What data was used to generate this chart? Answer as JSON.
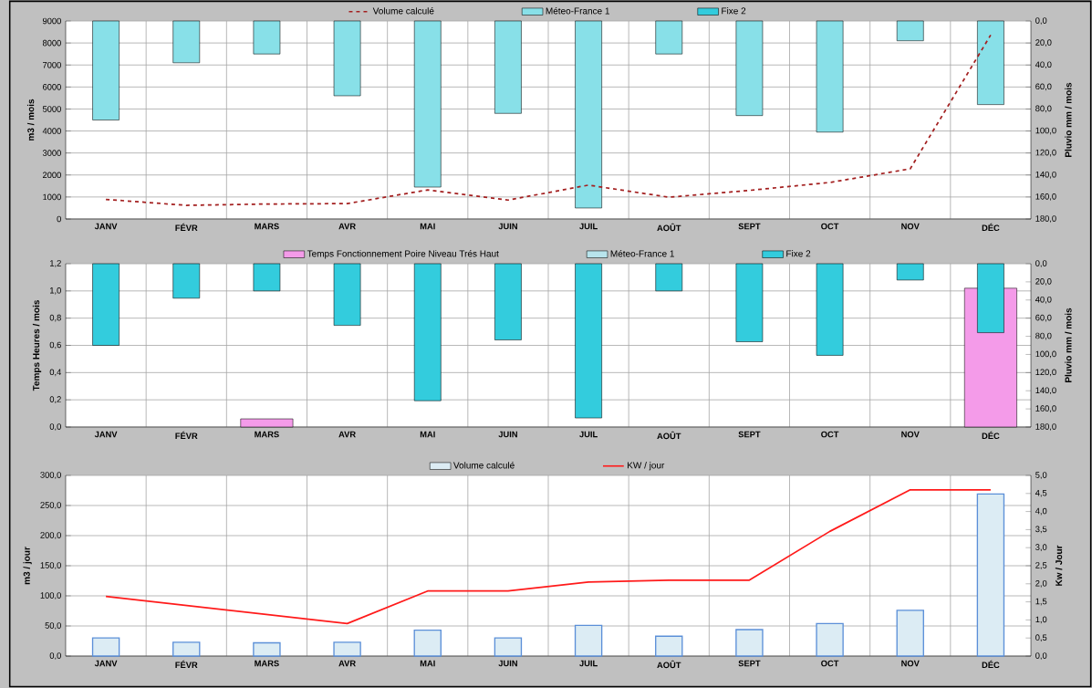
{
  "chart_data": [
    {
      "type": "bar",
      "categories": [
        "JANV",
        "FÉVR",
        "MARS",
        "AVR",
        "MAI",
        "JUIN",
        "JUIL",
        "AOÛT",
        "SEPT",
        "OCT",
        "NOV",
        "DÉC"
      ],
      "series": [
        {
          "name": "Volume calculé",
          "type": "line",
          "line_style": "dashed",
          "color": "#a31f1f",
          "values": [
            890,
            620,
            680,
            700,
            1320,
            860,
            1540,
            990,
            1300,
            1660,
            2280,
            8360
          ]
        },
        {
          "name": "Méteo-France 1",
          "axis": "y2",
          "color": "#88e0e8",
          "values": [
            90,
            38,
            30,
            68,
            151,
            84,
            170,
            30,
            86,
            101,
            18,
            76
          ]
        },
        {
          "name": "Fixe 2",
          "axis": "y2",
          "color": "#33ccdd",
          "values": [
            null,
            null,
            null,
            null,
            null,
            null,
            null,
            null,
            null,
            null,
            null,
            null
          ]
        }
      ],
      "ylabel": "m3 / mois",
      "y2label": "Pluvio  mm / mois",
      "ylim": [
        0,
        9000
      ],
      "yticks": [
        0,
        1000,
        2000,
        3000,
        4000,
        5000,
        6000,
        7000,
        8000,
        9000
      ],
      "y2lim": [
        180,
        0
      ],
      "y2ticks": [
        {
          "value": 0,
          "label": "0,0"
        },
        {
          "value": 20,
          "label": "20,0"
        },
        {
          "value": 40,
          "label": "40,0"
        },
        {
          "value": 60,
          "label": "60,0"
        },
        {
          "value": 80,
          "label": "80,0"
        },
        {
          "value": 100,
          "label": "100,0"
        },
        {
          "value": 120,
          "label": "120,0"
        },
        {
          "value": 140,
          "label": "140,0"
        },
        {
          "value": 160,
          "label": "160,0"
        },
        {
          "value": 180,
          "label": "180,0"
        }
      ],
      "grid": true,
      "legend": "top"
    },
    {
      "type": "bar",
      "categories": [
        "JANV",
        "FÉVR",
        "MARS",
        "AVR",
        "MAI",
        "JUIN",
        "JUIL",
        "AOÛT",
        "SEPT",
        "OCT",
        "NOV",
        "DÉC"
      ],
      "series": [
        {
          "name": "Temps Fonctionnement Poire Niveau Trés Haut",
          "color": "#f49be9",
          "values": [
            null,
            null,
            0.06,
            null,
            null,
            null,
            null,
            null,
            null,
            null,
            null,
            1.02
          ]
        },
        {
          "name": "Méteo-France 1",
          "axis": "y2",
          "color": "#b8e4ec",
          "values": [
            null,
            null,
            null,
            null,
            null,
            null,
            null,
            null,
            null,
            null,
            null,
            null
          ]
        },
        {
          "name": "Fixe 2",
          "axis": "y2",
          "color": "#33ccdd",
          "values": [
            90,
            38,
            30,
            68,
            151,
            84,
            170,
            30,
            86,
            101,
            18,
            76
          ]
        }
      ],
      "ylabel": "Temps  Heures / mois",
      "y2label": "Pluvio  mm / mois",
      "ylim": [
        0,
        1.2
      ],
      "yticks": [
        {
          "value": 0,
          "label": "0,0"
        },
        {
          "value": 0.2,
          "label": "0,2"
        },
        {
          "value": 0.4,
          "label": "0,4"
        },
        {
          "value": 0.6,
          "label": "0,6"
        },
        {
          "value": 0.8,
          "label": "0,8"
        },
        {
          "value": 1.0,
          "label": "1,0"
        },
        {
          "value": 1.2,
          "label": "1,2"
        }
      ],
      "y2lim": [
        180,
        0
      ],
      "y2ticks": [
        {
          "value": 0,
          "label": "0,0"
        },
        {
          "value": 20,
          "label": "20,0"
        },
        {
          "value": 40,
          "label": "40,0"
        },
        {
          "value": 60,
          "label": "60,0"
        },
        {
          "value": 80,
          "label": "80,0"
        },
        {
          "value": 100,
          "label": "100,0"
        },
        {
          "value": 120,
          "label": "120,0"
        },
        {
          "value": 140,
          "label": "140,0"
        },
        {
          "value": 160,
          "label": "160,0"
        },
        {
          "value": 180,
          "label": "180,0"
        }
      ],
      "grid": true,
      "legend": "top"
    },
    {
      "type": "bar",
      "categories": [
        "JANV",
        "FÉVR",
        "MARS",
        "AVR",
        "MAI",
        "JUIN",
        "JUIL",
        "AOÛT",
        "SEPT",
        "OCT",
        "NOV",
        "DÉC"
      ],
      "series": [
        {
          "name": "Volume calculé",
          "color": "#dcecf4",
          "values": [
            30,
            23,
            22,
            23,
            43,
            30,
            51,
            33,
            44,
            54,
            76,
            269
          ]
        },
        {
          "name": "KW / jour",
          "type": "line",
          "axis": "y2",
          "color": "#ff1a1a",
          "values": [
            1.65,
            1.4,
            1.15,
            0.9,
            1.8,
            1.8,
            2.05,
            2.1,
            2.1,
            3.45,
            4.6,
            4.6
          ]
        }
      ],
      "ylabel": "m3 / jour",
      "y2label": "Kw / Jour",
      "ylim": [
        0,
        300
      ],
      "yticks": [
        {
          "value": 0,
          "label": "0,0"
        },
        {
          "value": 50,
          "label": "50,0"
        },
        {
          "value": 100,
          "label": "100,0"
        },
        {
          "value": 150,
          "label": "150,0"
        },
        {
          "value": 200,
          "label": "200,0"
        },
        {
          "value": 250,
          "label": "250,0"
        },
        {
          "value": 300,
          "label": "300,0"
        }
      ],
      "y2lim": [
        0,
        5
      ],
      "y2ticks": [
        {
          "value": 0,
          "label": "0,0"
        },
        {
          "value": 0.5,
          "label": "0,5"
        },
        {
          "value": 1,
          "label": "1,0"
        },
        {
          "value": 1.5,
          "label": "1,5"
        },
        {
          "value": 2,
          "label": "2,0"
        },
        {
          "value": 2.5,
          "label": "2,5"
        },
        {
          "value": 3,
          "label": "3,0"
        },
        {
          "value": 3.5,
          "label": "3,5"
        },
        {
          "value": 4,
          "label": "4,0"
        },
        {
          "value": 4.5,
          "label": "4,5"
        },
        {
          "value": 5,
          "label": "5,0"
        }
      ],
      "grid": true,
      "legend": "top"
    }
  ]
}
